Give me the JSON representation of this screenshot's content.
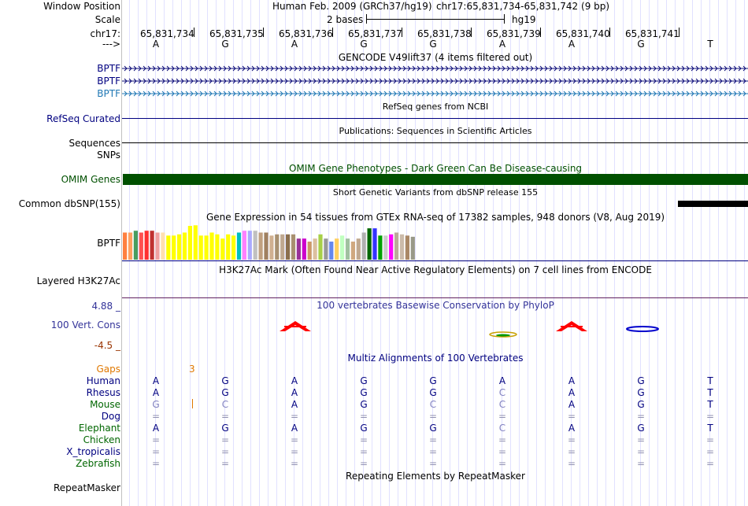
{
  "header": {
    "window_position_label": "Window Position",
    "assembly": "Human Feb. 2009 (GRCh37/hg19)",
    "position": "chr17:65,831,734-65,831,742 (9 bp)",
    "scale_label": "Scale",
    "scale_text": "2 bases",
    "scale_db": "hg19",
    "chrom_label": "chr17:",
    "strand_label": "--->",
    "coords": [
      "65,831,734",
      "65,831,735",
      "65,831,736",
      "65,831,737",
      "65,831,738",
      "65,831,739",
      "65,831,740",
      "65,831,741"
    ],
    "bases": [
      "A",
      "G",
      "A",
      "G",
      "G",
      "A",
      "A",
      "G",
      "T"
    ]
  },
  "gencode": {
    "title": "GENCODE V49lift37 (4 items filtered out)",
    "genes": [
      "BPTF",
      "BPTF",
      "BPTF"
    ],
    "colors": [
      "#0c0c78",
      "#0c0c78",
      "#1f77b4"
    ]
  },
  "refseq": {
    "title": "RefSeq genes from NCBI",
    "label": "RefSeq Curated"
  },
  "pubs": {
    "title": "Publications: Sequences in Scientific Articles",
    "label": "Sequences"
  },
  "snps": {
    "label": "SNPs"
  },
  "omim": {
    "title": "OMIM Gene Phenotypes - Dark Green Can Be Disease-causing",
    "label": "OMIM Genes",
    "color": "#005000"
  },
  "dbsnp": {
    "title": "Short Genetic Variants from dbSNP release 155",
    "label": "Common dbSNP(155)"
  },
  "gtex": {
    "title": "Gene Expression in 54 tissues from GTEx RNA-seq of 17382 samples, 948 donors (V8, Aug 2019)",
    "label": "BPTF",
    "values": [
      0.45,
      0.45,
      0.48,
      0.45,
      0.48,
      0.48,
      0.45,
      0.45,
      0.4,
      0.4,
      0.42,
      0.45,
      0.56,
      0.57,
      0.4,
      0.4,
      0.45,
      0.42,
      0.35,
      0.42,
      0.4,
      0.45,
      0.48,
      0.48,
      0.48,
      0.45,
      0.45,
      0.4,
      0.42,
      0.42,
      0.42,
      0.42,
      0.35,
      0.35,
      0.3,
      0.35,
      0.42,
      0.35,
      0.3,
      0.35,
      0.4,
      0.35,
      0.3,
      0.35,
      0.45,
      0.52,
      0.52,
      0.4,
      0.4,
      0.42,
      0.45,
      0.42,
      0.4,
      0.38
    ],
    "colors": [
      "#ff8040",
      "#ffa060",
      "#4a9d5e",
      "#ff5050",
      "#ff3030",
      "#c03030",
      "#f0a0a0",
      "#ffe0b0",
      "#ffff00",
      "#ffff00",
      "#ffff00",
      "#ffff00",
      "#ffff00",
      "#ffff00",
      "#ffff00",
      "#ffff00",
      "#ffff00",
      "#ffff00",
      "#ffff00",
      "#ffff00",
      "#ffff00",
      "#00c0c0",
      "#ff80ff",
      "#aaaaff",
      "#c0c0c0",
      "#c0a080",
      "#a08060",
      "#d0b090",
      "#a89070",
      "#c0a890",
      "#8b6f4e",
      "#a89070",
      "#993399",
      "#cc00cc",
      "#cc9966",
      "#dcc0a0",
      "#a8d048",
      "#999999",
      "#6688ee",
      "#ffd060",
      "#c0ffc0",
      "#a0c0a0",
      "#d0a880",
      "#c0a890",
      "#b0b0b0",
      "#006600",
      "#3333ff",
      "#00a000",
      "#cccccc",
      "#ff00ff",
      "#bbaa99",
      "#ccbbaa",
      "#aa8866",
      "#999988"
    ]
  },
  "h3k27ac": {
    "title": "H3K27Ac Mark (Often Found Near Active Regulatory Elements) on 7 cell lines from ENCODE",
    "label": "Layered H3K27Ac"
  },
  "cons": {
    "title": "100 vertebrates Basewise Conservation by PhyloP",
    "label": "100 Vert. Cons",
    "max": "4.88 _",
    "min": "-4.5 _"
  },
  "multiz": {
    "title": "Multiz Alignments of 100 Vertebrates",
    "gaps_label": "Gaps",
    "gap_count": "3",
    "species": [
      {
        "name": "Human",
        "bases": [
          "A",
          "G",
          "A",
          "G",
          "G",
          "A",
          "A",
          "G",
          "T"
        ]
      },
      {
        "name": "Rhesus",
        "bases": [
          "A",
          "G",
          "A",
          "G",
          "G",
          "C",
          "A",
          "G",
          "T"
        ]
      },
      {
        "name": "Mouse",
        "bases": [
          "G",
          "C",
          "A",
          "G",
          "C",
          "C",
          "A",
          "G",
          "T"
        ]
      },
      {
        "name": "Dog",
        "bases": [
          "=",
          "=",
          "=",
          "=",
          "=",
          "=",
          "=",
          "=",
          "="
        ]
      },
      {
        "name": "Elephant",
        "bases": [
          "A",
          "G",
          "A",
          "G",
          "G",
          "C",
          "A",
          "G",
          "T"
        ]
      },
      {
        "name": "Chicken",
        "bases": [
          "=",
          "=",
          "=",
          "=",
          "=",
          "=",
          "=",
          "=",
          "="
        ]
      },
      {
        "name": "X_tropicalis",
        "bases": [
          "=",
          "=",
          "=",
          "=",
          "=",
          "=",
          "=",
          "=",
          "="
        ]
      },
      {
        "name": "Zebrafish",
        "bases": [
          "=",
          "=",
          "=",
          "=",
          "=",
          "=",
          "=",
          "=",
          "="
        ]
      }
    ],
    "species_colors": [
      "#000080",
      "#000080",
      "#006600",
      "#000080",
      "#006600",
      "#006600",
      "#000080",
      "#006600"
    ]
  },
  "repeatmasker": {
    "title": "Repeating Elements by RepeatMasker",
    "label": "RepeatMasker"
  }
}
